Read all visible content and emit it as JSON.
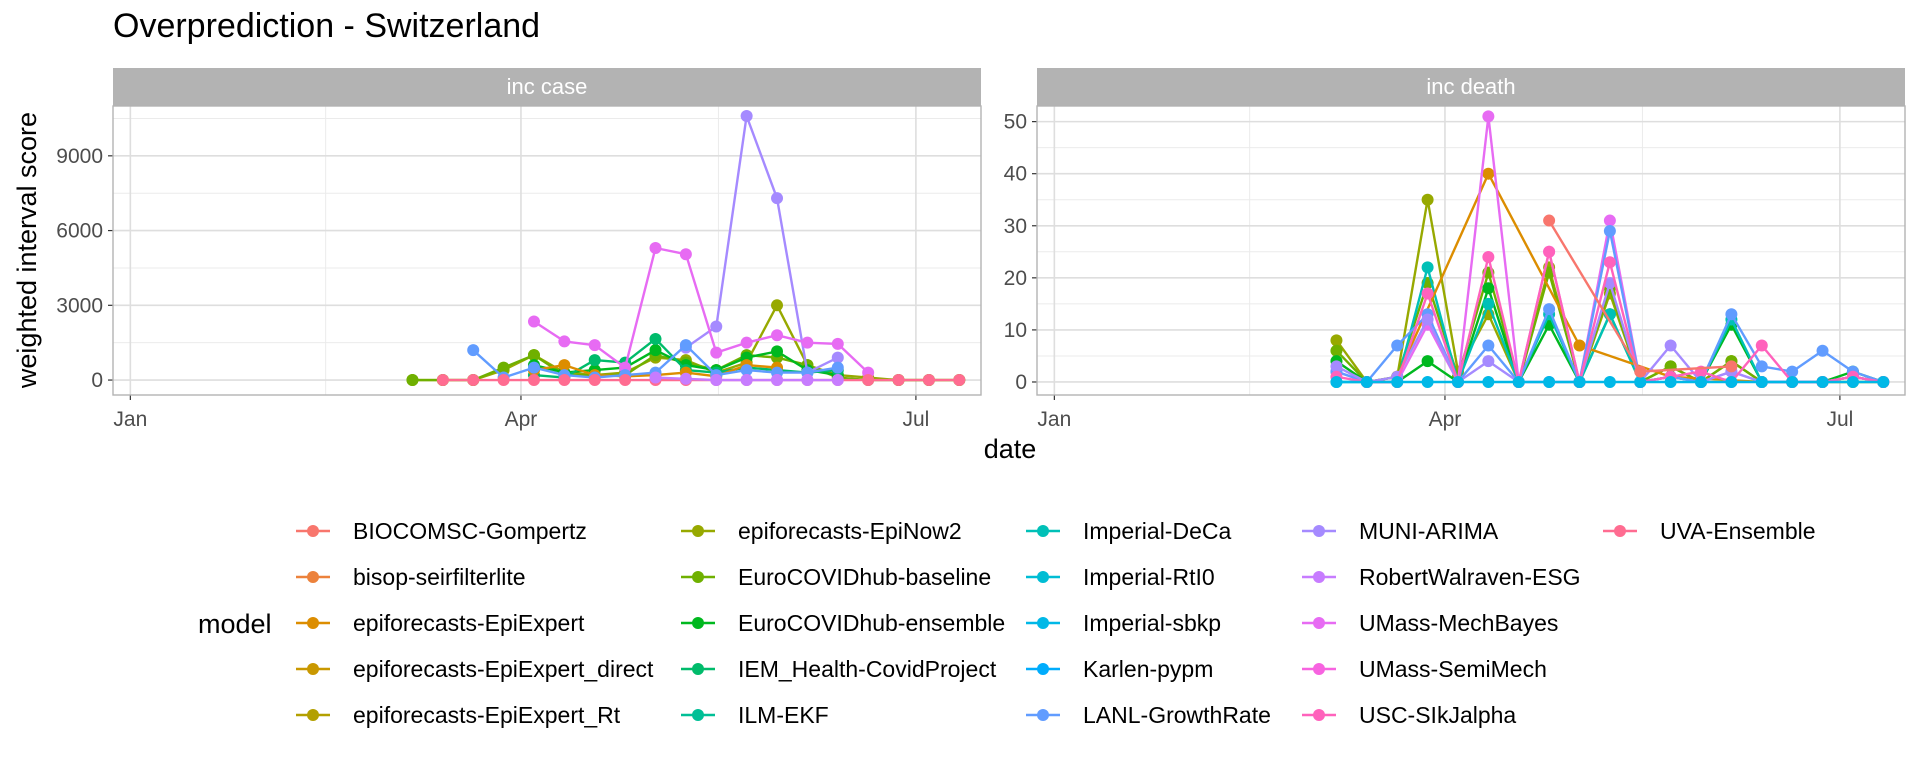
{
  "chart_data": {
    "type": "line",
    "title": "Overprediction - Switzerland",
    "xlabel": "date",
    "ylabel": "weighted interval score",
    "x_ticks": [
      {
        "label": "Jan",
        "day": 0
      },
      {
        "label": "Apr",
        "day": 90
      },
      {
        "label": "Jul",
        "day": 181
      }
    ],
    "panels": [
      {
        "name": "inc case",
        "ylim": [
          -600,
          11000
        ],
        "y_ticks": [
          0,
          3000,
          6000,
          9000
        ],
        "series": [
          {
            "name": "epiforecasts-EpiNow2",
            "x": [
              65,
              72,
              79,
              86,
              93,
              100,
              107,
              114,
              121,
              128,
              135,
              142,
              149,
              156,
              163,
              170,
              177,
              184,
              191
            ],
            "values": [
              0,
              0,
              0,
              400,
              1000,
              300,
              200,
              300,
              900,
              800,
              300,
              700,
              3000,
              600,
              200,
              100,
              0,
              0,
              0
            ]
          },
          {
            "name": "EuroCOVIDhub-baseline",
            "x": [
              65,
              72,
              79,
              86,
              93,
              100,
              107,
              114,
              121,
              128,
              135,
              142,
              149,
              156,
              163,
              170,
              177,
              184,
              191
            ],
            "values": [
              0,
              0,
              0,
              500,
              1000,
              200,
              200,
              200,
              1000,
              700,
              400,
              1000,
              900,
              600,
              100,
              0,
              0,
              0,
              0
            ]
          },
          {
            "name": "EuroCOVIDhub-ensemble",
            "x": [
              93,
              100,
              107,
              114,
              121,
              128,
              135,
              142,
              149,
              156,
              163
            ],
            "values": [
              600,
              300,
              400,
              500,
              1200,
              600,
              400,
              900,
              1150,
              400,
              200
            ]
          },
          {
            "name": "IEM_Health-CovidProject",
            "x": [
              93,
              100,
              107,
              114,
              121,
              128,
              135,
              142,
              149,
              156,
              163
            ],
            "values": [
              200,
              100,
              800,
              700,
              1650,
              400,
              300,
              500,
              400,
              300,
              400
            ]
          },
          {
            "name": "epiforecasts-EpiExpert",
            "x": [
              93,
              100,
              107,
              114,
              121,
              128,
              135,
              142,
              149
            ],
            "values": [
              400,
              600,
              200,
              150,
              200,
              300,
              150,
              600,
              500
            ]
          },
          {
            "name": "MUNI-ARIMA",
            "x": [
              128,
              135,
              142,
              149,
              156,
              163
            ],
            "values": [
              1300,
              2150,
              10600,
              7300,
              300,
              900
            ]
          },
          {
            "name": "UMass-MechBayes",
            "x": [
              93,
              100,
              107,
              114,
              121,
              128,
              135,
              142,
              149,
              156,
              163,
              170
            ],
            "values": [
              2350,
              1550,
              1400,
              500,
              5300,
              5050,
              1100,
              1500,
              1800,
              1500,
              1450,
              300
            ]
          },
          {
            "name": "LANL-GrowthRate",
            "x": [
              79,
              86,
              93,
              100,
              107,
              114,
              121,
              128,
              135,
              142,
              149,
              156,
              163
            ],
            "values": [
              1200,
              100,
              500,
              200,
              100,
              200,
              300,
              1400,
              200,
              400,
              300,
              300,
              500
            ]
          },
          {
            "name": "UVA-Ensemble",
            "x": [
              72,
              79,
              86,
              93,
              100,
              107,
              114,
              121,
              128,
              135,
              142,
              149,
              156,
              163,
              170,
              177,
              184,
              191
            ],
            "values": [
              0,
              0,
              0,
              0,
              0,
              0,
              0,
              0,
              0,
              0,
              0,
              0,
              0,
              0,
              0,
              0,
              0,
              0
            ]
          },
          {
            "name": "RobertWalraven-ESG",
            "x": [
              121,
              128,
              135,
              142,
              149,
              156,
              163
            ],
            "values": [
              100,
              50,
              0,
              0,
              0,
              0,
              0
            ]
          }
        ]
      },
      {
        "name": "inc death",
        "ylim": [
          -2.5,
          53
        ],
        "y_ticks": [
          0,
          10,
          20,
          30,
          40,
          50
        ],
        "series": [
          {
            "name": "epiforecasts-EpiNow2",
            "x": [
              65,
              72,
              79,
              86,
              93,
              100,
              107,
              114,
              121,
              128,
              135,
              142,
              149,
              156,
              163,
              170,
              177,
              184,
              191
            ],
            "values": [
              8,
              0,
              1,
              35,
              2,
              13,
              0,
              22,
              0,
              17,
              0,
              3,
              0,
              4,
              0,
              0,
              0,
              0,
              0
            ]
          },
          {
            "name": "EuroCOVIDhub-baseline",
            "x": [
              65,
              72,
              79,
              86,
              93,
              100,
              107,
              114,
              121,
              128,
              135,
              142,
              149,
              156,
              163,
              170,
              177,
              184,
              191
            ],
            "values": [
              6,
              0,
              1,
              19,
              1,
              21,
              0,
              21,
              0,
              18,
              0,
              3,
              0,
              4,
              0,
              0,
              0,
              1,
              0
            ]
          },
          {
            "name": "EuroCOVIDhub-ensemble",
            "x": [
              65,
              72,
              79,
              86,
              93,
              100,
              107,
              114,
              121,
              128,
              135,
              142,
              149,
              156,
              163,
              170,
              177,
              184,
              191
            ],
            "values": [
              4,
              0,
              0,
              4,
              0,
              18,
              0,
              11,
              0,
              13,
              0,
              1,
              0,
              11,
              0,
              0,
              0,
              2,
              0
            ]
          },
          {
            "name": "Imperial-DeCa",
            "x": [
              65,
              72,
              79,
              86,
              93,
              100,
              107,
              114,
              121,
              128,
              135,
              142,
              149,
              156,
              163,
              170,
              177,
              184,
              191
            ],
            "values": [
              0,
              0,
              0,
              22,
              0,
              15,
              0,
              13,
              0,
              13,
              0,
              1,
              0,
              12,
              0,
              0,
              0,
              1,
              0
            ]
          },
          {
            "name": "epiforecasts-EpiExpert",
            "x": [
              79,
              100,
              121,
              142,
              163
            ],
            "values": [
              1,
              40,
              7,
              1,
              0
            ]
          },
          {
            "name": "UMass-MechBayes",
            "x": [
              65,
              72,
              79,
              86,
              93,
              100,
              107,
              114,
              121,
              128,
              135,
              142,
              149,
              156,
              163,
              170,
              177,
              184,
              191
            ],
            "values": [
              2,
              0,
              0,
              11,
              0,
              51,
              0,
              25,
              0,
              31,
              0,
              1,
              0,
              2,
              0,
              0,
              0,
              1,
              0
            ]
          },
          {
            "name": "LANL-GrowthRate",
            "x": [
              65,
              72,
              79,
              86,
              93,
              100,
              107,
              114,
              121,
              128,
              135,
              142,
              149,
              156,
              163,
              170,
              177,
              184,
              191
            ],
            "values": [
              2,
              0,
              7,
              13,
              0,
              7,
              0,
              14,
              0,
              29,
              0,
              1,
              0,
              13,
              3,
              2,
              6,
              2,
              0
            ]
          },
          {
            "name": "MUNI-ARIMA",
            "x": [
              65,
              72,
              79,
              86,
              93,
              100,
              107,
              114,
              121,
              128,
              135,
              142,
              149,
              156,
              163,
              170,
              177,
              184,
              191
            ],
            "values": [
              3,
              0,
              1,
              12,
              0,
              4,
              0,
              0,
              0,
              19,
              0,
              7,
              0,
              2,
              0,
              0,
              0,
              1,
              0
            ]
          },
          {
            "name": "USC-SIkJalpha",
            "x": [
              65,
              72,
              79,
              86,
              93,
              100,
              107,
              114,
              121,
              128,
              135,
              142,
              149,
              156,
              163,
              170,
              177,
              184,
              191
            ],
            "values": [
              1,
              0,
              0,
              17,
              0,
              24,
              0,
              25,
              0,
              23,
              0,
              1,
              2,
              0,
              7,
              0,
              0,
              1,
              0
            ]
          },
          {
            "name": "Imperial-sbkp",
            "x": [
              65,
              72,
              79,
              86,
              93,
              100,
              107,
              114,
              121,
              128,
              135,
              142,
              149,
              156,
              163,
              170,
              177,
              184,
              191
            ],
            "values": [
              0,
              0,
              0,
              0,
              0,
              0,
              0,
              0,
              0,
              0,
              0,
              0,
              0,
              0,
              0,
              0,
              0,
              0,
              0
            ]
          },
          {
            "name": "BIOCOMSC-Gompertz",
            "x": [
              114,
              135,
              156
            ],
            "values": [
              31,
              2,
              3
            ]
          }
        ]
      }
    ],
    "legend_title": "model",
    "legend": [
      {
        "name": "BIOCOMSC-Gompertz",
        "color": "#F8766D"
      },
      {
        "name": "bisop-seirfilterlite",
        "color": "#EC823C"
      },
      {
        "name": "epiforecasts-EpiExpert",
        "color": "#DC8D00"
      },
      {
        "name": "epiforecasts-EpiExpert_direct",
        "color": "#C99800"
      },
      {
        "name": "epiforecasts-EpiExpert_Rt",
        "color": "#B3A000"
      },
      {
        "name": "epiforecasts-EpiNow2",
        "color": "#97A900"
      },
      {
        "name": "EuroCOVIDhub-baseline",
        "color": "#6FB000"
      },
      {
        "name": "EuroCOVIDhub-ensemble",
        "color": "#00B81F"
      },
      {
        "name": "IEM_Health-CovidProject",
        "color": "#00BB6B"
      },
      {
        "name": "ILM-EKF",
        "color": "#00BF96"
      },
      {
        "name": "Imperial-DeCa",
        "color": "#00C0B7"
      },
      {
        "name": "Imperial-RtI0",
        "color": "#00BDD4"
      },
      {
        "name": "Imperial-sbkp",
        "color": "#00B8E7"
      },
      {
        "name": "Karlen-pypm",
        "color": "#00ACFC"
      },
      {
        "name": "LANL-GrowthRate",
        "color": "#619CFF"
      },
      {
        "name": "MUNI-ARIMA",
        "color": "#A58AFF"
      },
      {
        "name": "RobertWalraven-ESG",
        "color": "#C77CFF"
      },
      {
        "name": "UMass-MechBayes",
        "color": "#E76BF3"
      },
      {
        "name": "UMass-SemiMech",
        "color": "#F763E0"
      },
      {
        "name": "USC-SIkJalpha",
        "color": "#FF62BC"
      },
      {
        "name": "UVA-Ensemble",
        "color": "#FF6C91"
      }
    ]
  }
}
